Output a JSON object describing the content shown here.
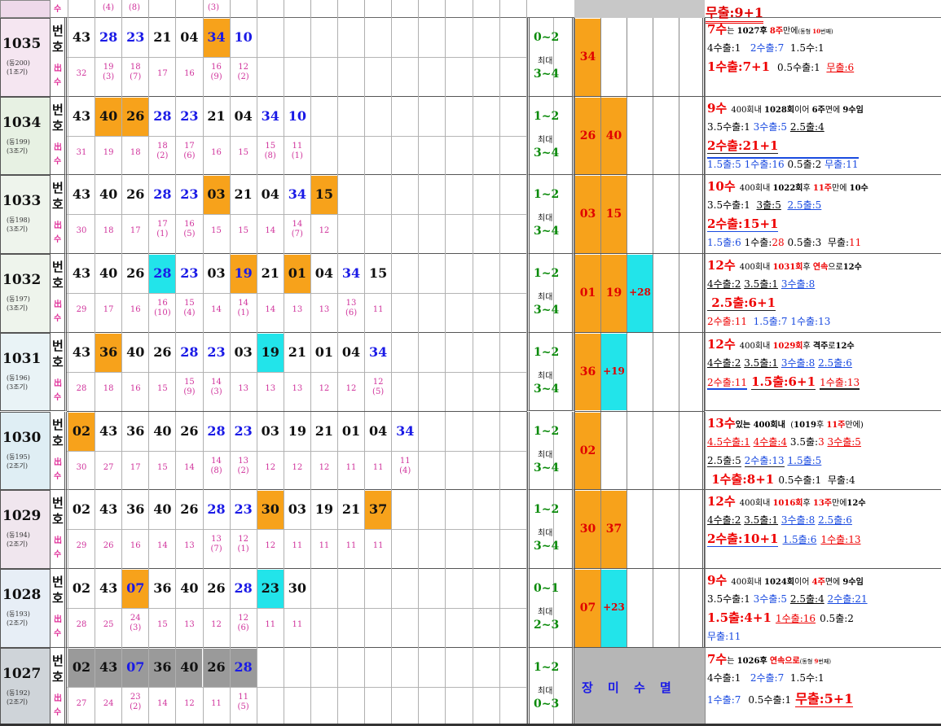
{
  "header": {
    "counts_top": [
      "(4)",
      "(8)",
      "(3)"
    ],
    "su_label": "수",
    "top_right": "무출:9+1"
  },
  "labels": {
    "bun": "번",
    "ho": "호",
    "dae": "최대"
  },
  "rows": [
    {
      "id": "1035",
      "sub1": "(동200)",
      "sub2": "(1조기)",
      "nums": [
        "43",
        "28",
        "23",
        "21",
        "04",
        "34",
        "10"
      ],
      "colors": [
        "k",
        "b",
        "b",
        "k",
        "k",
        "b",
        "b"
      ],
      "hl": [
        null,
        null,
        null,
        null,
        null,
        "orange",
        null
      ],
      "counts": [
        [
          "32",
          ""
        ],
        [
          "19",
          "(3)"
        ],
        [
          "18",
          "(7)"
        ],
        [
          "17",
          ""
        ],
        [
          "16",
          ""
        ],
        [
          "16",
          "(9)"
        ],
        [
          "12",
          "(2)"
        ]
      ],
      "range_top": "0~2",
      "range_bot": "3~4",
      "extra": [
        {
          "text": "34",
          "color": "orange"
        }
      ],
      "info": [
        "<span style='color:#e00;font-weight:bold;font-size:15px'>7수</span><span style='font-size:10px'>는 <b>1027후</b> <b style='color:#e00'>8주</b>만에<span style='font-size:7px'>(동형 <b style='color:#e00'>10</b>번째)</span></span>",
        "<span style='font-size:12px'>4수출:1 &nbsp; <span style='color:#1a4be0'>2수출:7</span> &nbsp;1.5수:1</span>",
        "<b style='color:#e00;font-size:15px'>1수출:7+1</b> <span style='font-size:12px'>&nbsp;0.5수출:1 &nbsp;<span style='color:#e00;text-decoration:underline'>무출:6</span></span>"
      ]
    },
    {
      "id": "1034",
      "sub1": "(동199)",
      "sub2": "(3조기)",
      "nums": [
        "43",
        "40",
        "26",
        "28",
        "23",
        "21",
        "04",
        "34",
        "10"
      ],
      "colors": [
        "k",
        "k",
        "k",
        "b",
        "b",
        "k",
        "k",
        "b",
        "b"
      ],
      "hl": [
        null,
        "orange",
        "orange",
        null,
        null,
        null,
        null,
        null,
        null
      ],
      "counts": [
        [
          "31",
          ""
        ],
        [
          "19",
          ""
        ],
        [
          "18",
          ""
        ],
        [
          "18",
          "(2)"
        ],
        [
          "17",
          "(6)"
        ],
        [
          "16",
          ""
        ],
        [
          "15",
          ""
        ],
        [
          "15",
          "(8)"
        ],
        [
          "11",
          "(1)"
        ]
      ],
      "range_top": "1~2",
      "range_bot": "3~4",
      "extra": [
        {
          "text": "26",
          "color": "orange"
        },
        {
          "text": "40",
          "color": "orange"
        }
      ],
      "info": [
        "<span style='color:#e00;font-weight:bold;font-size:15px'>9수</span> <span style='font-size:10px'>400회내 <b>1028회</b>이어 <b>6주</b>면에 <b>9수임</b></span>",
        "<span style='font-size:12px'>3.5수출:1 <span style='color:#1a4be0'>3수출:5</span> <span style='text-decoration:underline'>2.5출:4</span></span>",
        "<b style='color:#e00;font-size:15px;border-bottom:3px double #222'>2수출:21+1</b>",
        "<span style='font-size:12px;border-top:2px solid #1a4be0'><span style='color:#1a4be0'>1.5출:5</span> <span style='color:#1a4be0'>1수출:16</span> 0.5출:2 <span style='color:#1a4be0'>무출:11</span></span>"
      ]
    },
    {
      "id": "1033",
      "sub1": "(동198)",
      "sub2": "(3조기)",
      "nums": [
        "43",
        "40",
        "26",
        "28",
        "23",
        "03",
        "21",
        "04",
        "34",
        "15"
      ],
      "colors": [
        "k",
        "k",
        "k",
        "b",
        "b",
        "k",
        "k",
        "k",
        "b",
        "k"
      ],
      "hl": [
        null,
        null,
        null,
        null,
        null,
        "orange",
        null,
        null,
        null,
        "orange"
      ],
      "counts": [
        [
          "30",
          ""
        ],
        [
          "18",
          ""
        ],
        [
          "17",
          ""
        ],
        [
          "17",
          "(1)"
        ],
        [
          "16",
          "(5)"
        ],
        [
          "15",
          ""
        ],
        [
          "15",
          ""
        ],
        [
          "14",
          ""
        ],
        [
          "14",
          "(7)"
        ],
        [
          "12",
          ""
        ]
      ],
      "range_top": "1~2",
      "range_bot": "3~4",
      "extra": [
        {
          "text": "03",
          "color": "orange"
        },
        {
          "text": "15",
          "color": "orange"
        }
      ],
      "info": [
        "<span style='color:#e00;font-weight:bold;font-size:15px'>10수</span> <span style='font-size:10px'>400회내 <b>1022회</b>후 <b style='color:#e00'>11주</b>만에 <b>10수</b></span>",
        "<span style='font-size:12px'>3.5수출:1 &nbsp;<span style='text-decoration:underline'>3출:5</span> &nbsp;<span style='color:#1a4be0;text-decoration:underline'>2.5출:5</span></span>",
        "<b style='color:#e00;font-size:15px;border-bottom:3px double #1a4be0'>2수출:15+1</b>",
        "<span style='font-size:12px'><span style='color:#1a4be0'>1.5출:6</span> 1수출:<span style='color:#e00'>28</span> 0.5출:3 &nbsp;무출:<span style='color:#e00'>11</span></span>"
      ]
    },
    {
      "id": "1032",
      "sub1": "(동197)",
      "sub2": "(3조기)",
      "nums": [
        "43",
        "40",
        "26",
        "28",
        "23",
        "03",
        "19",
        "21",
        "01",
        "04",
        "34",
        "15"
      ],
      "colors": [
        "k",
        "k",
        "k",
        "b",
        "b",
        "k",
        "b",
        "k",
        "k",
        "k",
        "b",
        "k"
      ],
      "hl": [
        null,
        null,
        null,
        "cyan",
        null,
        null,
        "orange",
        null,
        "orange",
        null,
        null,
        null
      ],
      "counts": [
        [
          "29",
          ""
        ],
        [
          "17",
          ""
        ],
        [
          "16",
          ""
        ],
        [
          "16",
          "(10)"
        ],
        [
          "15",
          "(4)"
        ],
        [
          "14",
          ""
        ],
        [
          "14",
          "(1)"
        ],
        [
          "14",
          ""
        ],
        [
          "13",
          ""
        ],
        [
          "13",
          ""
        ],
        [
          "13",
          "(6)"
        ],
        [
          "11",
          ""
        ]
      ],
      "range_top": "1~2",
      "range_bot": "3~4",
      "extra": [
        {
          "text": "01",
          "color": "orange"
        },
        {
          "text": "19",
          "color": "orange"
        },
        {
          "text": "+28",
          "color": "cyan"
        }
      ],
      "info": [
        "<span style='color:#e00;font-weight:bold;font-size:15px'>12수</span> <span style='font-size:10px'>400회내 <b style='color:#e00'>1031회</b>후 <b style='color:#e00'>연속</b>으로<b>12수</b></span>",
        "<span style='font-size:12px'><span style='text-decoration:underline'>4수출:2</span> <span style='text-decoration:underline'>3.5출:1</span> <span style='color:#1a4be0;text-decoration:underline'>3수출:8</span></span>",
        "<b style='color:#e00;font-size:15px;border-bottom:3px double #222'>&nbsp;2.5출:6+1</b>",
        "<span style='font-size:12px'><span style='color:#e00'>2수출:11</span> &nbsp;<span style='color:#1a4be0'>1.5출:7</span> <span style='color:#1a4be0'>1수출:13</span></span>"
      ]
    },
    {
      "id": "1031",
      "sub1": "(동196)",
      "sub2": "(3조기)",
      "nums": [
        "43",
        "36",
        "40",
        "26",
        "28",
        "23",
        "03",
        "19",
        "21",
        "01",
        "04",
        "34"
      ],
      "colors": [
        "k",
        "k",
        "k",
        "k",
        "b",
        "b",
        "k",
        "k",
        "k",
        "k",
        "k",
        "b"
      ],
      "hl": [
        null,
        "orange",
        null,
        null,
        null,
        null,
        null,
        "cyan",
        null,
        null,
        null,
        null
      ],
      "counts": [
        [
          "28",
          ""
        ],
        [
          "18",
          ""
        ],
        [
          "16",
          ""
        ],
        [
          "15",
          ""
        ],
        [
          "15",
          "(9)"
        ],
        [
          "14",
          "(3)"
        ],
        [
          "13",
          ""
        ],
        [
          "13",
          ""
        ],
        [
          "13",
          ""
        ],
        [
          "12",
          ""
        ],
        [
          "12",
          ""
        ],
        [
          "12",
          "(5)"
        ]
      ],
      "range_top": "1~2",
      "range_bot": "3~4",
      "extra": [
        {
          "text": "36",
          "color": "orange"
        },
        {
          "text": "+19",
          "color": "cyan"
        }
      ],
      "info": [
        "<span style='color:#e00;font-weight:bold;font-size:15px'>12수</span> <span style='font-size:10px'>400회내 <b style='color:#e00'>1029회</b>후 <b>격주</b>로<b>12수</b></span>",
        "<span style='font-size:12px'><span style='text-decoration:underline'>4수출:2</span> <span style='text-decoration:underline'>3.5출:1</span> <span style='color:#1a4be0;text-decoration:underline'>3수출:8</span> <span style='color:#1a4be0;text-decoration:underline'>2.5출:6</span></span>",
        "<span style='font-size:12px;color:#e00;border-bottom:3px solid #1a4be0'>2수출:11</span> <b style='color:#e00;font-size:15px;border-bottom:3px double #222'>1.5출:6+1</b> <span style='font-size:12px;color:#e00;border-bottom:2px solid #222'>1수출:13</span>"
      ]
    },
    {
      "id": "1030",
      "sub1": "(동195)",
      "sub2": "(2조기)",
      "nums": [
        "02",
        "43",
        "36",
        "40",
        "26",
        "28",
        "23",
        "03",
        "19",
        "21",
        "01",
        "04",
        "34"
      ],
      "colors": [
        "k",
        "k",
        "k",
        "k",
        "k",
        "b",
        "b",
        "k",
        "k",
        "k",
        "k",
        "k",
        "b"
      ],
      "hl": [
        "orange",
        null,
        null,
        null,
        null,
        null,
        null,
        null,
        null,
        null,
        null,
        null,
        null
      ],
      "counts": [
        [
          "30",
          ""
        ],
        [
          "27",
          ""
        ],
        [
          "17",
          ""
        ],
        [
          "15",
          ""
        ],
        [
          "14",
          ""
        ],
        [
          "14",
          "(8)"
        ],
        [
          "13",
          "(2)"
        ],
        [
          "12",
          ""
        ],
        [
          "12",
          ""
        ],
        [
          "12",
          ""
        ],
        [
          "11",
          ""
        ],
        [
          "11",
          ""
        ],
        [
          "11",
          "(4)"
        ]
      ],
      "range_top": "1~2",
      "range_bot": "3~4",
      "extra": [
        {
          "text": "02",
          "color": "orange"
        }
      ],
      "info": [
        "<span style='color:#e00;font-weight:bold;font-size:15px'>13수</span><span style='font-size:10px'><b>있는 400회내</b> &nbsp;(<b>1019</b>후 <b style='color:#e00'>11주</b>만에)</span>",
        "<span style='font-size:12px'><span style='color:#e00;text-decoration:underline'>4.5수출:1</span> <span style='color:#e00;text-decoration:underline'>4수출:4</span> 3.5출:<span style='color:#e00'>3</span> <span style='color:#e00;text-decoration:underline'>3수출:5</span></span>",
        "<span style='font-size:12px'><span style='border-bottom:3px double #222'>2.5출:5</span> <span style='color:#1a4be0;border-bottom:3px double #222'>2수출:13</span> <span style='color:#1a4be0;text-decoration:underline'>1.5출:5</span></span>",
        "<b style='color:#e00;font-size:15px'>&nbsp;1수출:8+1</b> <span style='font-size:12px'>0.5수출:1 &nbsp;무출:4</span>"
      ]
    },
    {
      "id": "1029",
      "sub1": "(동194)",
      "sub2": "(2조기)",
      "nums": [
        "02",
        "43",
        "36",
        "40",
        "26",
        "28",
        "23",
        "30",
        "03",
        "19",
        "21",
        "37"
      ],
      "colors": [
        "k",
        "k",
        "k",
        "k",
        "k",
        "b",
        "b",
        "k",
        "k",
        "k",
        "k",
        "k"
      ],
      "hl": [
        null,
        null,
        null,
        null,
        null,
        null,
        null,
        "orange",
        null,
        null,
        null,
        "orange"
      ],
      "counts": [
        [
          "29",
          ""
        ],
        [
          "26",
          ""
        ],
        [
          "16",
          ""
        ],
        [
          "14",
          ""
        ],
        [
          "13",
          ""
        ],
        [
          "13",
          "(7)"
        ],
        [
          "12",
          "(1)"
        ],
        [
          "12",
          ""
        ],
        [
          "11",
          ""
        ],
        [
          "11",
          ""
        ],
        [
          "11",
          ""
        ],
        [
          "11",
          ""
        ]
      ],
      "range_top": "1~2",
      "range_bot": "3~4",
      "extra": [
        {
          "text": "30",
          "color": "orange"
        },
        {
          "text": "37",
          "color": "orange"
        }
      ],
      "info": [
        "<span style='color:#e00;font-weight:bold;font-size:15px'>12수</span> <span style='font-size:10px'>400회내 <b style='color:#e00'>1016회</b>후 <b style='color:#e00'>13주</b>만에<b>12수</b></span>",
        "<span style='font-size:12px'><span style='text-decoration:underline'>4수출:2</span> <span style='text-decoration:underline'>3.5출:1</span> <span style='color:#1a4be0;text-decoration:underline'>3수출:8</span> <span style='color:#1a4be0;text-decoration:underline'>2.5출:6</span></span>",
        "<b style='color:#e00;font-size:15px;border-bottom:3px double #1a4be0'>2수출:10+1</b> <span style='font-size:12px;color:#1a4be0;text-decoration:underline'>1.5출:6</span> <span style='font-size:12px;color:#e00;text-decoration:underline'>1수출:13</span>"
      ]
    },
    {
      "id": "1028",
      "sub1": "(동193)",
      "sub2": "(2조기)",
      "nums": [
        "02",
        "43",
        "07",
        "36",
        "40",
        "26",
        "28",
        "23",
        "30"
      ],
      "colors": [
        "k",
        "k",
        "b",
        "k",
        "k",
        "k",
        "b",
        "k",
        "k"
      ],
      "hl": [
        null,
        null,
        "orange",
        null,
        null,
        null,
        null,
        "cyan",
        null
      ],
      "counts": [
        [
          "28",
          ""
        ],
        [
          "25",
          ""
        ],
        [
          "24",
          "(3)"
        ],
        [
          "15",
          ""
        ],
        [
          "13",
          ""
        ],
        [
          "12",
          ""
        ],
        [
          "12",
          "(6)"
        ],
        [
          "11",
          ""
        ],
        [
          "11",
          ""
        ]
      ],
      "range_top": "0~1",
      "range_bot": "2~3",
      "extra": [
        {
          "text": "07",
          "color": "orange"
        },
        {
          "text": "+23",
          "color": "cyan"
        }
      ],
      "info": [
        "<span style='color:#e00;font-weight:bold;font-size:15px'>9수</span> <span style='font-size:10px'>400회내 <b>1024회</b>이어 <b style='color:#e00'>4주</b>면에 <b>9수임</b></span>",
        "<span style='font-size:12px'>3.5수출:1 <span style='color:#1a4be0'>3수출:5</span> <span style='text-decoration:underline'>2.5출:4</span> <span style='color:#1a4be0;text-decoration:underline'>2수출:21</span></span>",
        "<b style='color:#e00;font-size:15px'>1.5출:4+1</b> <span style='font-size:12px;color:#e00;text-decoration:underline'>1수출:16</span> <span style='font-size:12px'>0.5출:2</span>",
        "<span style='font-size:12px;color:#1a4be0'>무출:11</span>"
      ]
    },
    {
      "id": "1027",
      "sub1": "(동192)",
      "sub2": "(2조기)",
      "nums": [
        "02",
        "43",
        "07",
        "36",
        "40",
        "26",
        "28"
      ],
      "colors": [
        "k",
        "k",
        "b",
        "k",
        "k",
        "k",
        "b"
      ],
      "hl": [
        "gray",
        "gray",
        "gray",
        "gray",
        "gray",
        "gray",
        "gray"
      ],
      "counts": [
        [
          "27",
          ""
        ],
        [
          "24",
          ""
        ],
        [
          "23",
          "(2)"
        ],
        [
          "14",
          ""
        ],
        [
          "12",
          ""
        ],
        [
          "11",
          ""
        ],
        [
          "11",
          "(5)"
        ]
      ],
      "range_top": "1~2",
      "range_bot": "0~3",
      "extra": [],
      "footer_labels": [
        "장",
        "미",
        "수",
        "멸"
      ],
      "info": [
        "<span style='color:#e00;font-weight:bold;font-size:15px'>7수</span><span style='font-size:10px'>는 <b>1026후</b> <b style='color:#e00'>연속으로</b><span style='font-size:7px'>(동형 <b style='color:#e00'>9</b>번째)</span></span>",
        "<span style='font-size:12px'>4수출:1 &nbsp; <span style='color:#1a4be0'>2수출:7</span> &nbsp;1.5수:1</span>",
        "<span style='font-size:12px;color:#1a4be0'>1수출:7</span> <span style='font-size:12px'>&nbsp;0.5수출:1</span> <b style='color:#e00;font-size:16px;border-bottom:3px double #e00'>무출:5+1</b>"
      ]
    }
  ],
  "colors": {
    "orange": "#f7a21b",
    "cyan": "#22e4ea",
    "gray": "#9a9a9a",
    "blue": "#1a1ae6",
    "black": "#111111",
    "pink": "#d0349c",
    "green": "#0a8a0a",
    "red": "#e00000"
  }
}
